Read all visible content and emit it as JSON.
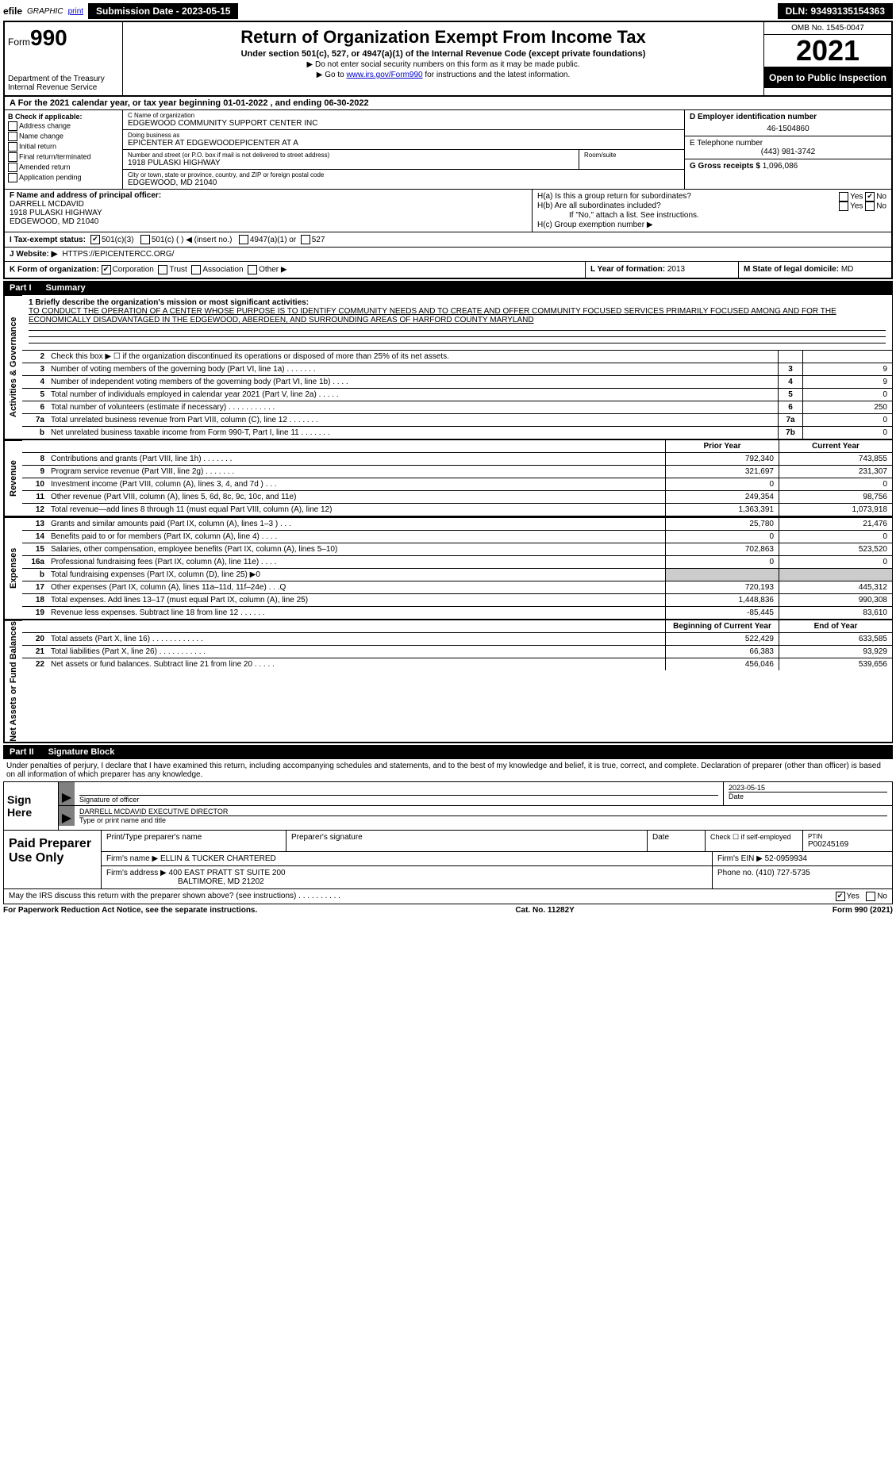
{
  "top": {
    "efile": "efile",
    "graphic": "GRAPHIC",
    "print": "print",
    "submission": "Submission Date - 2023-05-15",
    "dln": "DLN: 93493135154363"
  },
  "header": {
    "form_label": "Form",
    "form_number": "990",
    "dept1": "Department of the Treasury",
    "dept2": "Internal Revenue Service",
    "title": "Return of Organization Exempt From Income Tax",
    "subtitle": "Under section 501(c), 527, or 4947(a)(1) of the Internal Revenue Code (except private foundations)",
    "note1": "▶ Do not enter social security numbers on this form as it may be made public.",
    "note2_pre": "▶ Go to ",
    "note2_link": "www.irs.gov/Form990",
    "note2_post": " for instructions and the latest information.",
    "omb": "OMB No. 1545-0047",
    "year": "2021",
    "open_pub": "Open to Public Inspection"
  },
  "rowA": "A For the 2021 calendar year, or tax year beginning 01-01-2022   , and ending 06-30-2022",
  "colB": {
    "label": "B Check if applicable:",
    "items": [
      "Address change",
      "Name change",
      "Initial return",
      "Final return/terminated",
      "Amended return",
      "Application pending"
    ]
  },
  "C": {
    "name_lab": "C Name of organization",
    "name": "EDGEWOOD COMMUNITY SUPPORT CENTER INC",
    "dba_lab": "Doing business as",
    "dba": "EPICENTER AT EDGEWOODEPICENTER AT A",
    "addr_lab": "Number and street (or P.O. box if mail is not delivered to street address)",
    "room_lab": "Room/suite",
    "addr": "1918 PULASKI HIGHWAY",
    "city_lab": "City or town, state or province, country, and ZIP or foreign postal code",
    "city": "EDGEWOOD, MD  21040"
  },
  "D": {
    "lab": "D Employer identification number",
    "val": "46-1504860",
    "E_lab": "E Telephone number",
    "E_val": "(443) 981-3742",
    "G_lab": "G Gross receipts $",
    "G_val": "1,096,086"
  },
  "F": {
    "lab": "F  Name and address of principal officer:",
    "name": "DARRELL MCDAVID",
    "addr1": "1918 PULASKI HIGHWAY",
    "addr2": "EDGEWOOD, MD  21040"
  },
  "H": {
    "a": "H(a)  Is this a group return for subordinates?",
    "a_yes": "Yes",
    "a_no": "No",
    "b": "H(b)  Are all subordinates included?",
    "b_yes": "Yes",
    "b_no": "No",
    "b_note": "If \"No,\" attach a list. See instructions.",
    "c": "H(c)  Group exemption number ▶"
  },
  "I": {
    "lab": "I   Tax-exempt status:",
    "opts": [
      "501(c)(3)",
      "501(c) (   ) ◀ (insert no.)",
      "4947(a)(1) or",
      "527"
    ]
  },
  "J": {
    "lab": "J   Website: ▶",
    "val": "HTTPS://EPICENTERCC.ORG/"
  },
  "K": {
    "lab": "K Form of organization:",
    "opts": [
      "Corporation",
      "Trust",
      "Association",
      "Other ▶"
    ]
  },
  "L": {
    "lab": "L Year of formation:",
    "val": "2013"
  },
  "M": {
    "lab": "M State of legal domicile:",
    "val": "MD"
  },
  "partI": {
    "pn": "Part I",
    "title": "Summary"
  },
  "mission": {
    "line1_lab": "1  Briefly describe the organization's mission or most significant activities:",
    "text": "TO CONDUCT THE OPERATION OF A CENTER WHOSE PURPOSE IS TO IDENTIFY COMMUNITY NEEDS AND TO CREATE AND OFFER COMMUNITY FOCUSED SERVICES PRIMARILY FOCUSED AMONG AND FOR THE ECONOMICALLY DISADVANTAGED IN THE EDGEWOOD, ABERDEEN, AND SURROUNDING AREAS OF HARFORD COUNTY MARYLAND"
  },
  "gov_lines": [
    {
      "n": "2",
      "t": "Check this box ▶ ☐ if the organization discontinued its operations or disposed of more than 25% of its net assets.",
      "box": "",
      "v": ""
    },
    {
      "n": "3",
      "t": "Number of voting members of the governing body (Part VI, line 1a)   .   .   .   .   .   .   .",
      "box": "3",
      "v": "9"
    },
    {
      "n": "4",
      "t": "Number of independent voting members of the governing body (Part VI, line 1b)   .   .   .   .",
      "box": "4",
      "v": "9"
    },
    {
      "n": "5",
      "t": "Total number of individuals employed in calendar year 2021 (Part V, line 2a)   .   .   .   .   .",
      "box": "5",
      "v": "0"
    },
    {
      "n": "6",
      "t": "Total number of volunteers (estimate if necessary)   .   .   .   .   .   .   .   .   .   .   .",
      "box": "6",
      "v": "250"
    },
    {
      "n": "7a",
      "t": "Total unrelated business revenue from Part VIII, column (C), line 12   .   .   .   .   .   .   .",
      "box": "7a",
      "v": "0"
    },
    {
      "n": "b",
      "t": "Net unrelated business taxable income from Form 990-T, Part I, line 11   .   .   .   .   .   .   .",
      "box": "7b",
      "v": "0"
    }
  ],
  "pyhdr": {
    "py": "Prior Year",
    "cy": "Current Year"
  },
  "rev_lines": [
    {
      "n": "8",
      "t": "Contributions and grants (Part VIII, line 1h)   .   .   .   .   .   .   .",
      "py": "792,340",
      "cy": "743,855"
    },
    {
      "n": "9",
      "t": "Program service revenue (Part VIII, line 2g)   .   .   .   .   .   .   .",
      "py": "321,697",
      "cy": "231,307"
    },
    {
      "n": "10",
      "t": "Investment income (Part VIII, column (A), lines 3, 4, and 7d )   .   .   .",
      "py": "0",
      "cy": "0"
    },
    {
      "n": "11",
      "t": "Other revenue (Part VIII, column (A), lines 5, 6d, 8c, 9c, 10c, and 11e)",
      "py": "249,354",
      "cy": "98,756"
    },
    {
      "n": "12",
      "t": "Total revenue—add lines 8 through 11 (must equal Part VIII, column (A), line 12)",
      "py": "1,363,391",
      "cy": "1,073,918"
    }
  ],
  "exp_lines": [
    {
      "n": "13",
      "t": "Grants and similar amounts paid (Part IX, column (A), lines 1–3 )   .   .   .",
      "py": "25,780",
      "cy": "21,476"
    },
    {
      "n": "14",
      "t": "Benefits paid to or for members (Part IX, column (A), line 4)   .   .   .   .",
      "py": "0",
      "cy": "0"
    },
    {
      "n": "15",
      "t": "Salaries, other compensation, employee benefits (Part IX, column (A), lines 5–10)",
      "py": "702,863",
      "cy": "523,520"
    },
    {
      "n": "16a",
      "t": "Professional fundraising fees (Part IX, column (A), line 11e)   .   .   .   .",
      "py": "0",
      "cy": "0"
    },
    {
      "n": "b",
      "t": "Total fundraising expenses (Part IX, column (D), line 25) ▶0",
      "py": "",
      "cy": "",
      "shade": true
    },
    {
      "n": "17",
      "t": "Other expenses (Part IX, column (A), lines 11a–11d, 11f–24e)   .   .        .Q",
      "py": "720,193",
      "cy": "445,312"
    },
    {
      "n": "18",
      "t": "Total expenses. Add lines 13–17 (must equal Part IX, column (A), line 25)",
      "py": "1,448,836",
      "cy": "990,308"
    },
    {
      "n": "19",
      "t": "Revenue less expenses. Subtract line 18 from line 12   .   .   .   .   .   .",
      "py": "-85,445",
      "cy": "83,610"
    }
  ],
  "nahdr": {
    "py": "Beginning of Current Year",
    "cy": "End of Year"
  },
  "na_lines": [
    {
      "n": "20",
      "t": "Total assets (Part X, line 16)   .   .   .   .   .   .   .   .   .   .   .   .",
      "py": "522,429",
      "cy": "633,585"
    },
    {
      "n": "21",
      "t": "Total liabilities (Part X, line 26)   .   .   .   .   .   .   .   .   .   .   .",
      "py": "66,383",
      "cy": "93,929"
    },
    {
      "n": "22",
      "t": "Net assets or fund balances. Subtract line 21 from line 20   .   .   .   .   .",
      "py": "456,046",
      "cy": "539,656"
    }
  ],
  "partII": {
    "pn": "Part II",
    "title": "Signature Block"
  },
  "sig": {
    "intro": "Under penalties of perjury, I declare that I have examined this return, including accompanying schedules and statements, and to the best of my knowledge and belief, it is true, correct, and complete. Declaration of preparer (other than officer) is based on all information of which preparer has any knowledge.",
    "sign_here": "Sign Here",
    "sig_officer_lab": "Signature of officer",
    "date_lab": "Date",
    "date_val": "2023-05-15",
    "name_title": "DARRELL MCDAVID  EXECUTIVE DIRECTOR",
    "name_title_lab": "Type or print name and title"
  },
  "paid": {
    "title": "Paid Preparer Use Only",
    "h1": "Print/Type preparer's name",
    "h2": "Preparer's signature",
    "h3": "Date",
    "h4": "Check ☐ if self-employed",
    "h5_lab": "PTIN",
    "h5_val": "P00245169",
    "firm_name_lab": "Firm's name    ▶",
    "firm_name": "ELLIN & TUCKER CHARTERED",
    "firm_ein_lab": "Firm's EIN ▶",
    "firm_ein": "52-0959934",
    "firm_addr_lab": "Firm's address ▶",
    "firm_addr1": "400 EAST PRATT ST SUITE 200",
    "firm_addr2": "BALTIMORE, MD  21202",
    "phone_lab": "Phone no.",
    "phone": "(410) 727-5735"
  },
  "may": {
    "text": "May the IRS discuss this return with the preparer shown above? (see instructions)   .   .   .   .   .   .   .   .   .   .",
    "yes": "Yes",
    "no": "No"
  },
  "foot": {
    "left": "For Paperwork Reduction Act Notice, see the separate instructions.",
    "mid": "Cat. No. 11282Y",
    "right": "Form 990 (2021)"
  },
  "side_labels": {
    "gov": "Activities & Governance",
    "rev": "Revenue",
    "exp": "Expenses",
    "na": "Net Assets or Fund Balances"
  }
}
